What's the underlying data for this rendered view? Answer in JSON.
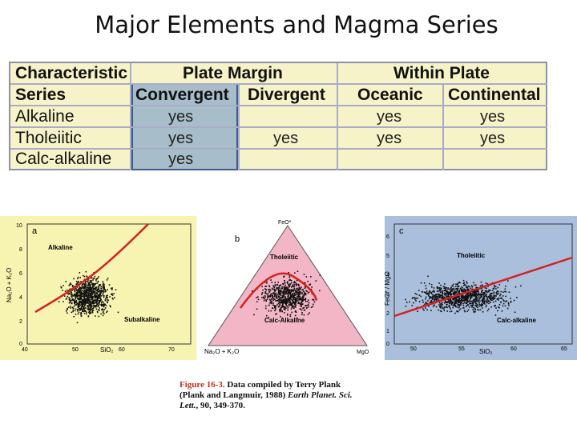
{
  "title": "Major Elements and Magma Series",
  "table": {
    "header1": [
      "Characteristic",
      "Plate Margin",
      "Within Plate"
    ],
    "header2": [
      "Series",
      "Convergent",
      "Divergent",
      "Oceanic",
      "Continental"
    ],
    "rows": [
      {
        "series": "Alkaline",
        "convergent": "yes",
        "divergent": "",
        "oceanic": "yes",
        "continental": "yes"
      },
      {
        "series": "Tholeiitic",
        "convergent": "yes",
        "divergent": "yes",
        "oceanic": "yes",
        "continental": "yes"
      },
      {
        "series": "Calc-alkaline",
        "convergent": "yes",
        "divergent": "",
        "oceanic": "",
        "continental": ""
      }
    ]
  },
  "plots": {
    "a": {
      "label": "a",
      "ylabel": "Na₂O + K₂O",
      "xlabel": "SiO₂",
      "xticks": [
        "40",
        "50",
        "60",
        "70"
      ],
      "yticks": [
        "10",
        "8",
        "6",
        "4",
        "2",
        "0"
      ],
      "field_labels": [
        "Alkaline",
        "Subalkaline"
      ],
      "bg": "#f7f3b0"
    },
    "b": {
      "label": "b",
      "apex_top": "FeO*",
      "apex_left": "Na₂O + K₂O",
      "apex_right": "MgO",
      "field_labels": [
        "Tholeiitic",
        "Calc-Alkaline"
      ],
      "bg": "#f2b6c6"
    },
    "c": {
      "label": "c",
      "ylabel": "FeO* / MgO",
      "xlabel": "SiO₂",
      "xticks": [
        "50",
        "55",
        "60",
        "65"
      ],
      "yticks": [
        "6",
        "5",
        "4",
        "3",
        "2",
        "1",
        "0"
      ],
      "field_labels": [
        "Tholeiitic",
        "Calc-alkaline"
      ],
      "bg": "#aabfdc"
    }
  },
  "caption": {
    "fig": "Figure 16-3.",
    "text1": " Data compiled by Terry Plank (Plank and Langmuir, 1988)",
    "journal": "Earth Planet. Sci. Lett.",
    "text2": ", 90, 349-370."
  },
  "colors": {
    "red_line": "#d42020",
    "table_bg": "#f6f3c8",
    "convergent_bg": "#a7bdc9"
  }
}
